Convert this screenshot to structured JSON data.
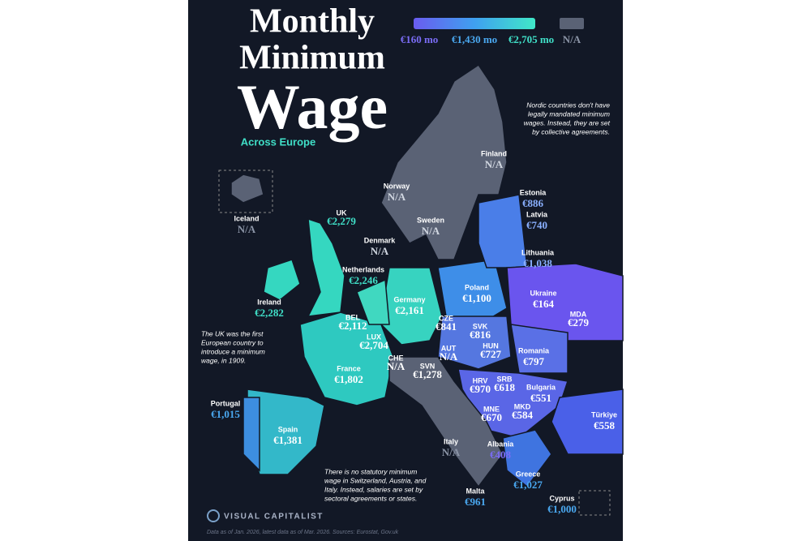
{
  "header": {
    "title_lines": [
      "Monthly",
      "Minimum",
      "Wage"
    ],
    "subtitle": "Across Europe"
  },
  "legend": {
    "labels": [
      "€160 mo",
      "€1,430 mo",
      "€2,705 mo",
      "N/A"
    ]
  },
  "countries": [
    {
      "name": "Iceland",
      "wage": "N/A"
    },
    {
      "name": "UK",
      "wage": "€2,279"
    },
    {
      "name": "Norway",
      "wage": "N/A"
    },
    {
      "name": "Finland",
      "wage": "N/A"
    },
    {
      "name": "Sweden",
      "wage": "N/A"
    },
    {
      "name": "Estonia",
      "wage": "€886"
    },
    {
      "name": "Latvia",
      "wage": "€740"
    },
    {
      "name": "Denmark",
      "wage": "N/A"
    },
    {
      "name": "Lithuania",
      "wage": "€1,038"
    },
    {
      "name": "Netherlands",
      "wage": "€2,246"
    },
    {
      "name": "Poland",
      "wage": "€1,100"
    },
    {
      "name": "Ireland",
      "wage": "€2,282"
    },
    {
      "name": "Ukraine",
      "wage": "€164"
    },
    {
      "name": "Germany",
      "wage": "€2,161"
    },
    {
      "name": "BEL",
      "wage": "€2,112"
    },
    {
      "name": "LUX",
      "wage": "€2,704"
    },
    {
      "name": "MDA",
      "wage": "€279"
    },
    {
      "name": "CZE",
      "wage": "€841"
    },
    {
      "name": "SVK",
      "wage": "€816"
    },
    {
      "name": "HUN",
      "wage": "€727"
    },
    {
      "name": "Romania",
      "wage": "€797"
    },
    {
      "name": "AUT",
      "wage": "N/A"
    },
    {
      "name": "France",
      "wage": "€1,802"
    },
    {
      "name": "CHE",
      "wage": "N/A"
    },
    {
      "name": "SVN",
      "wage": "€1,278"
    },
    {
      "name": "HRV",
      "wage": "€970"
    },
    {
      "name": "SRB",
      "wage": "€618"
    },
    {
      "name": "Bulgaria",
      "wage": "€551"
    },
    {
      "name": "MNE",
      "wage": "€670"
    },
    {
      "name": "MKD",
      "wage": "€584"
    },
    {
      "name": "Türkiye",
      "wage": "€558"
    },
    {
      "name": "Portugal",
      "wage": "€1,015"
    },
    {
      "name": "Spain",
      "wage": "€1,381"
    },
    {
      "name": "Italy",
      "wage": "N/A"
    },
    {
      "name": "Albania",
      "wage": "€408"
    },
    {
      "name": "Greece",
      "wage": "€1,027"
    },
    {
      "name": "Cyprus",
      "wage": "€1,000"
    },
    {
      "name": "Malta",
      "wage": "€961"
    }
  ],
  "notes": [
    [
      "Nordic countries don't have",
      "legally mandated minimum",
      "wages. Instead, they are set",
      "by collective agreements."
    ],
    [
      "The UK was the first",
      "European country to",
      "introduce a minimum",
      "wage, in 1909."
    ],
    [
      "There is no statutory minimum",
      "wage in Switzerland, Austria, and",
      "Italy. Instead, salaries are set by",
      "sectoral agreements or states."
    ]
  ],
  "footer": {
    "brand": "VISUAL CAPITALIST",
    "source": "Data as of Jan. 2026, latest data as of Mar. 2026. Sources: Eurostat, Gov.uk"
  }
}
